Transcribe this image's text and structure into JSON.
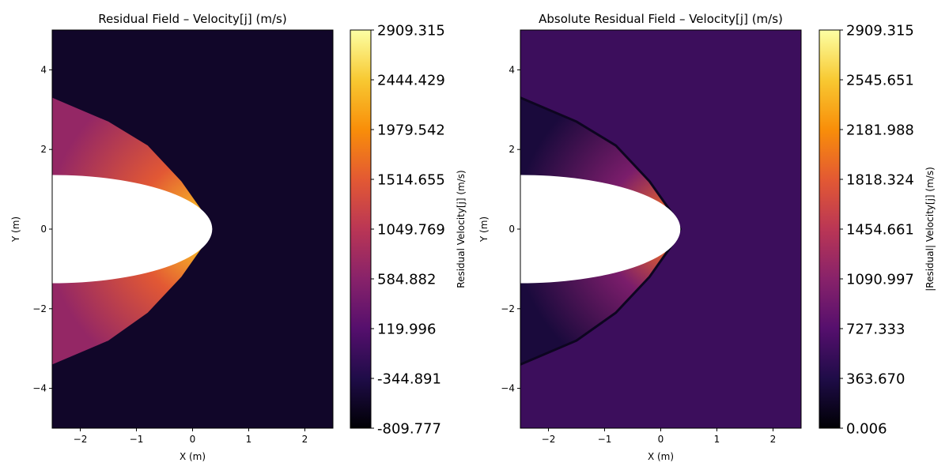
{
  "chart_data": [
    {
      "type": "heatmap",
      "title": "Residual Field – Velocity[j] (m/s)",
      "xlabel": "X (m)",
      "ylabel": "Y (m)",
      "xlim": [
        -2.5,
        2.5
      ],
      "ylim": [
        -5,
        5
      ],
      "x_ticks": [
        {
          "v": -2,
          "label": "−2"
        },
        {
          "v": -1,
          "label": "−1"
        },
        {
          "v": 0,
          "label": "0"
        },
        {
          "v": 1,
          "label": "1"
        },
        {
          "v": 2,
          "label": "2"
        }
      ],
      "y_ticks": [
        {
          "v": -4,
          "label": "−4"
        },
        {
          "v": -2,
          "label": "−2"
        },
        {
          "v": 0,
          "label": "0"
        },
        {
          "v": 2,
          "label": "2"
        },
        {
          "v": 4,
          "label": "4"
        }
      ],
      "colormap": "inferno",
      "background_value": -560,
      "body": {
        "center_x": -2.5,
        "semi_axis_x": 2.85,
        "semi_axis_y": 1.36
      },
      "shock_front": [
        [
          -2.5,
          3.3
        ],
        [
          -1.5,
          2.7
        ],
        [
          -0.8,
          2.1
        ],
        [
          -0.2,
          1.2
        ],
        [
          0.2,
          0.4
        ],
        [
          0.35,
          0.0
        ],
        [
          0.2,
          -0.4
        ],
        [
          -0.2,
          -1.2
        ],
        [
          -0.8,
          -2.1
        ],
        [
          -1.5,
          -2.8
        ],
        [
          -2.5,
          -3.4
        ]
      ],
      "shock_layer_values": {
        "near_stagnation": 2909,
        "near_shock_at_nose": 2300,
        "mid_layer": 1500,
        "outer_flanks": 700
      },
      "colorbar": {
        "label": "Residual Velocity[j] (m/s)",
        "min": -809.777,
        "max": 2909.315,
        "ticks": [
          "-809.777",
          "-344.891",
          "119.996",
          "584.882",
          "1049.769",
          "1514.655",
          "1979.542",
          "2444.429",
          "2909.315"
        ]
      }
    },
    {
      "type": "heatmap",
      "title": "Absolute Residual Field – Velocity[j] (m/s)",
      "xlabel": "X (m)",
      "ylabel": "Y (m)",
      "xlim": [
        -2.5,
        2.5
      ],
      "ylim": [
        -5,
        5
      ],
      "x_ticks": [
        {
          "v": -2,
          "label": "−2"
        },
        {
          "v": -1,
          "label": "−1"
        },
        {
          "v": 0,
          "label": "0"
        },
        {
          "v": 1,
          "label": "1"
        },
        {
          "v": 2,
          "label": "2"
        }
      ],
      "y_ticks": [
        {
          "v": -4,
          "label": "−4"
        },
        {
          "v": -2,
          "label": "−2"
        },
        {
          "v": 0,
          "label": "0"
        },
        {
          "v": 2,
          "label": "2"
        },
        {
          "v": 4,
          "label": "4"
        }
      ],
      "colormap": "inferno",
      "background_value": 560,
      "body": {
        "center_x": -2.5,
        "semi_axis_x": 2.85,
        "semi_axis_y": 1.36
      },
      "shock_front": [
        [
          -2.5,
          3.3
        ],
        [
          -1.5,
          2.7
        ],
        [
          -0.8,
          2.1
        ],
        [
          -0.2,
          1.2
        ],
        [
          0.2,
          0.4
        ],
        [
          0.35,
          0.0
        ],
        [
          0.2,
          -0.4
        ],
        [
          -0.2,
          -1.2
        ],
        [
          -0.8,
          -2.1
        ],
        [
          -1.5,
          -2.8
        ],
        [
          -2.5,
          -3.4
        ]
      ],
      "shock_line_value": 150,
      "shock_layer_values": {
        "near_stagnation": 2909,
        "near_shock_at_nose": 1900,
        "mid_layer": 1000,
        "outer_flanks": 300
      },
      "colorbar": {
        "label": "|Residual| Velocity[j] (m/s)",
        "min": 0.006,
        "max": 2909.315,
        "ticks": [
          "0.006",
          "363.670",
          "727.333",
          "1090.997",
          "1454.661",
          "1818.324",
          "2181.988",
          "2545.651",
          "2909.315"
        ]
      }
    }
  ]
}
